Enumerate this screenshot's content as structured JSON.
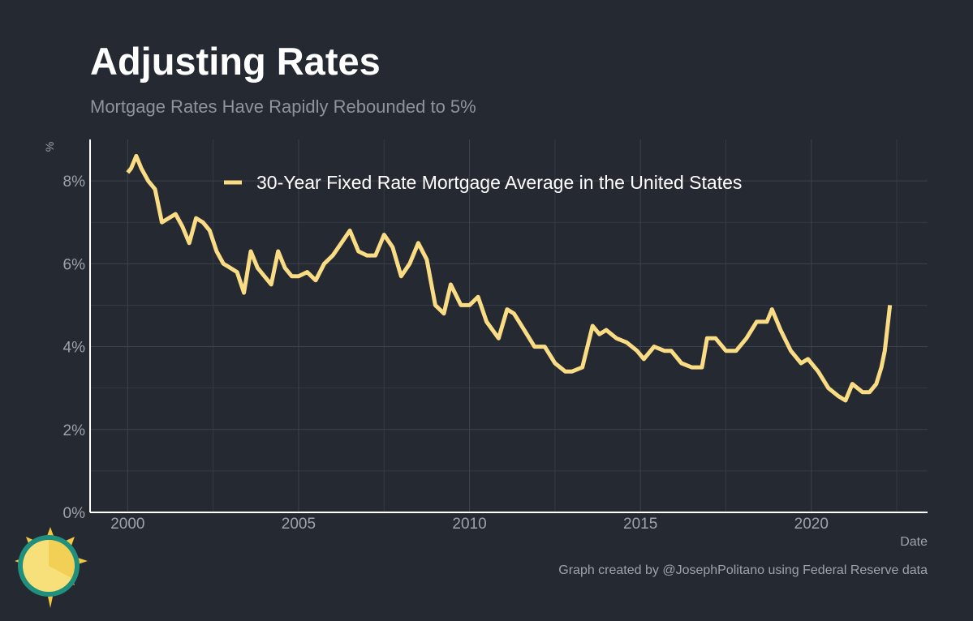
{
  "chart_data": {
    "type": "line",
    "title": "Adjusting Rates",
    "subtitle": "Mortgage Rates Have Rapidly Rebounded to 5%",
    "y_label": "%",
    "x_label": "Date",
    "caption": "Graph created by @JosephPolitano using Federal Reserve data",
    "x": [
      2000.0,
      2000.1,
      2000.25,
      2000.4,
      2000.6,
      2000.8,
      2001.0,
      2001.2,
      2001.4,
      2001.6,
      2001.8,
      2002.0,
      2002.2,
      2002.4,
      2002.6,
      2002.8,
      2003.0,
      2003.2,
      2003.4,
      2003.6,
      2003.8,
      2004.0,
      2004.2,
      2004.4,
      2004.6,
      2004.8,
      2005.0,
      2005.25,
      2005.5,
      2005.75,
      2006.0,
      2006.25,
      2006.5,
      2006.75,
      2007.0,
      2007.25,
      2007.5,
      2007.75,
      2008.0,
      2008.25,
      2008.5,
      2008.75,
      2009.0,
      2009.25,
      2009.45,
      2009.75,
      2010.0,
      2010.25,
      2010.5,
      2010.85,
      2011.1,
      2011.3,
      2011.6,
      2011.9,
      2012.2,
      2012.5,
      2012.8,
      2013.0,
      2013.3,
      2013.6,
      2013.8,
      2014.0,
      2014.3,
      2014.6,
      2014.9,
      2015.1,
      2015.4,
      2015.7,
      2015.9,
      2016.2,
      2016.5,
      2016.8,
      2016.95,
      2017.2,
      2017.5,
      2017.8,
      2018.1,
      2018.4,
      2018.7,
      2018.85,
      2019.1,
      2019.4,
      2019.7,
      2019.9,
      2020.2,
      2020.5,
      2020.8,
      2021.0,
      2021.2,
      2021.5,
      2021.7,
      2021.9,
      2022.05,
      2022.15,
      2022.3
    ],
    "series": [
      {
        "name": "30-Year Fixed Rate Mortgage Average in the United States",
        "color": "#f9dc83",
        "values": [
          8.2,
          8.3,
          8.6,
          8.3,
          8.0,
          7.8,
          7.0,
          7.1,
          7.2,
          6.9,
          6.5,
          7.1,
          7.0,
          6.8,
          6.3,
          6.0,
          5.9,
          5.8,
          5.3,
          6.3,
          5.9,
          5.7,
          5.5,
          6.3,
          5.9,
          5.7,
          5.7,
          5.8,
          5.6,
          6.0,
          6.2,
          6.5,
          6.8,
          6.3,
          6.2,
          6.2,
          6.7,
          6.4,
          5.7,
          6.0,
          6.5,
          6.1,
          5.0,
          4.8,
          5.5,
          5.0,
          5.0,
          5.2,
          4.6,
          4.2,
          4.9,
          4.8,
          4.4,
          4.0,
          4.0,
          3.6,
          3.4,
          3.4,
          3.5,
          4.5,
          4.3,
          4.4,
          4.2,
          4.1,
          3.9,
          3.7,
          4.0,
          3.9,
          3.9,
          3.6,
          3.5,
          3.5,
          4.2,
          4.2,
          3.9,
          3.9,
          4.2,
          4.6,
          4.6,
          4.9,
          4.4,
          3.9,
          3.6,
          3.7,
          3.4,
          3.0,
          2.8,
          2.7,
          3.1,
          2.9,
          2.9,
          3.1,
          3.5,
          3.9,
          5.0
        ]
      }
    ],
    "xlim": [
      1998.9,
      2023.4
    ],
    "ylim": [
      0,
      9
    ],
    "xticks": [
      2000,
      2005,
      2010,
      2015,
      2020
    ],
    "xminorticks": [
      2002.5,
      2007.5,
      2012.5,
      2017.5,
      2022.5
    ],
    "yticks": [
      {
        "value": 0,
        "label": "0%"
      },
      {
        "value": 2,
        "label": "2%"
      },
      {
        "value": 4,
        "label": "4%"
      },
      {
        "value": 6,
        "label": "6%"
      },
      {
        "value": 8,
        "label": "8%"
      }
    ],
    "yminorticks": [
      1,
      3,
      5,
      7
    ],
    "grid": true,
    "legend": "top"
  }
}
